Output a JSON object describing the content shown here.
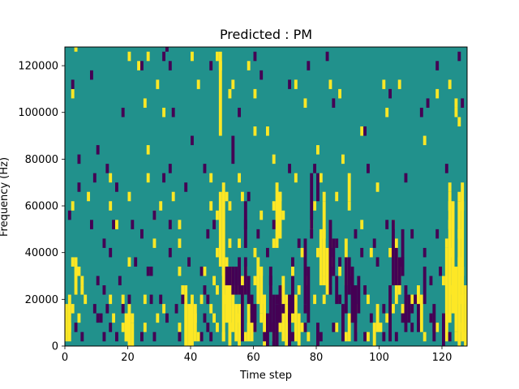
{
  "chart_data": {
    "type": "heatmap",
    "title": "Predicted : PM",
    "xlabel": "Time step",
    "ylabel": "Frequency (Hz)",
    "xlim": [
      0,
      128
    ],
    "ylim": [
      0,
      128000
    ],
    "xticks": [
      0,
      20,
      40,
      60,
      80,
      100,
      120
    ],
    "xtick_labels": [
      "0",
      "20",
      "40",
      "60",
      "80",
      "100",
      "120"
    ],
    "yticks": [
      0,
      20000,
      40000,
      60000,
      80000,
      100000,
      120000
    ],
    "ytick_labels": [
      "0",
      "20000",
      "40000",
      "60000",
      "80000",
      "100000",
      "120000"
    ],
    "grid": false,
    "legend": "none",
    "colors": {
      "background_value": "#21918c",
      "low_value": "#440154",
      "high_value": "#fde725"
    },
    "cell_size": {
      "time_steps": 1,
      "frequency_hz": 4000
    },
    "high_cells": [
      [
        3,
        126000
      ],
      [
        20,
        122000
      ],
      [
        26,
        122000
      ],
      [
        40,
        122000
      ],
      [
        48,
        122000
      ],
      [
        49,
        118000
      ],
      [
        23,
        118000
      ],
      [
        58,
        118000
      ],
      [
        29,
        110000
      ],
      [
        42,
        110000
      ],
      [
        53,
        110000
      ],
      [
        73,
        110000
      ],
      [
        84,
        110000
      ],
      [
        101,
        110000
      ],
      [
        106,
        110000
      ],
      [
        122,
        110000
      ],
      [
        2,
        106000
      ],
      [
        25,
        102000
      ],
      [
        52,
        106000
      ],
      [
        60,
        106000
      ],
      [
        76,
        102000
      ],
      [
        87,
        106000
      ],
      [
        118,
        106000
      ],
      [
        124,
        102000
      ],
      [
        31,
        98000
      ],
      [
        102,
        98000
      ],
      [
        124,
        98000
      ],
      [
        60,
        90000
      ],
      [
        64,
        90000
      ],
      [
        94,
        90000
      ],
      [
        114,
        86000
      ],
      [
        125,
        94000
      ],
      [
        80,
        82000
      ],
      [
        26,
        82000
      ],
      [
        66,
        78000
      ],
      [
        88,
        78000
      ],
      [
        14,
        70000
      ],
      [
        26,
        70000
      ],
      [
        46,
        70000
      ],
      [
        55,
        70000
      ],
      [
        73,
        70000
      ],
      [
        81,
        70000
      ],
      [
        99,
        66000
      ],
      [
        122,
        66000
      ],
      [
        7,
        62000
      ],
      [
        20,
        62000
      ],
      [
        34,
        62000
      ],
      [
        51,
        62000
      ],
      [
        56,
        62000
      ],
      [
        68,
        62000
      ],
      [
        82,
        62000
      ],
      [
        86,
        62000
      ],
      [
        125,
        62000
      ],
      [
        2,
        58000
      ],
      [
        14,
        58000
      ],
      [
        30,
        58000
      ],
      [
        46,
        58000
      ],
      [
        52,
        58000
      ],
      [
        66,
        58000
      ],
      [
        79,
        58000
      ],
      [
        90,
        58000
      ],
      [
        122,
        58000
      ],
      [
        126,
        58000
      ],
      [
        16,
        50000
      ],
      [
        28,
        54000
      ],
      [
        36,
        50000
      ],
      [
        48,
        54000
      ],
      [
        62,
        54000
      ],
      [
        69,
        54000
      ],
      [
        78,
        50000
      ],
      [
        82,
        46000
      ],
      [
        84,
        42000
      ],
      [
        94,
        50000
      ],
      [
        104,
        50000
      ],
      [
        122,
        50000
      ],
      [
        125,
        46000
      ],
      [
        28,
        42000
      ],
      [
        36,
        42000
      ],
      [
        48,
        38000
      ],
      [
        52,
        42000
      ],
      [
        55,
        42000
      ],
      [
        60,
        38000
      ],
      [
        66,
        42000
      ],
      [
        75,
        38000
      ],
      [
        80,
        38000
      ],
      [
        84,
        34000
      ],
      [
        97,
        38000
      ],
      [
        103,
        38000
      ],
      [
        121,
        42000
      ],
      [
        123,
        38000
      ],
      [
        125,
        34000
      ],
      [
        2,
        34000
      ],
      [
        4,
        30000
      ],
      [
        20,
        34000
      ],
      [
        36,
        30000
      ],
      [
        44,
        30000
      ],
      [
        50,
        30000
      ],
      [
        57,
        30000
      ],
      [
        62,
        30000
      ],
      [
        72,
        30000
      ],
      [
        76,
        26000
      ],
      [
        82,
        26000
      ],
      [
        87,
        30000
      ],
      [
        106,
        30000
      ],
      [
        120,
        26000
      ],
      [
        126,
        30000
      ],
      [
        5,
        26000
      ],
      [
        5,
        22000
      ],
      [
        6,
        18000
      ],
      [
        14,
        18000
      ],
      [
        18,
        18000
      ],
      [
        25,
        18000
      ],
      [
        31,
        14000
      ],
      [
        37,
        22000
      ],
      [
        43,
        18000
      ],
      [
        47,
        26000
      ],
      [
        48,
        22000
      ],
      [
        51,
        18000
      ],
      [
        55,
        22000
      ],
      [
        60,
        26000
      ],
      [
        63,
        18000
      ],
      [
        68,
        22000
      ],
      [
        70,
        18000
      ],
      [
        74,
        22000
      ],
      [
        79,
        18000
      ],
      [
        82,
        18000
      ],
      [
        92,
        14000
      ],
      [
        96,
        18000
      ],
      [
        104,
        14000
      ],
      [
        110,
        18000
      ],
      [
        123,
        22000
      ],
      [
        126,
        18000
      ],
      [
        2,
        14000
      ],
      [
        4,
        10000
      ],
      [
        1,
        6000
      ],
      [
        15,
        10000
      ],
      [
        18,
        6000
      ],
      [
        21,
        10000
      ],
      [
        25,
        6000
      ],
      [
        29,
        10000
      ],
      [
        36,
        6000
      ],
      [
        41,
        10000
      ],
      [
        46,
        14000
      ],
      [
        47,
        10000
      ],
      [
        48,
        6000
      ],
      [
        50,
        2000
      ],
      [
        52,
        6000
      ],
      [
        55,
        10000
      ],
      [
        57,
        2000
      ],
      [
        60,
        6000
      ],
      [
        62,
        10000
      ],
      [
        66,
        2000
      ],
      [
        68,
        6000
      ],
      [
        72,
        10000
      ],
      [
        75,
        6000
      ],
      [
        77,
        2000
      ],
      [
        86,
        6000
      ],
      [
        89,
        2000
      ],
      [
        92,
        6000
      ],
      [
        96,
        2000
      ],
      [
        100,
        6000
      ],
      [
        102,
        10000
      ],
      [
        114,
        2000
      ],
      [
        118,
        6000
      ],
      [
        121,
        10000
      ],
      [
        124,
        2000
      ],
      [
        126,
        6000
      ],
      [
        127,
        2000
      ],
      [
        19,
        2000
      ],
      [
        42,
        2000
      ],
      [
        58,
        6000
      ],
      [
        107,
        14000
      ]
    ],
    "high_runs": [
      [
        49,
        90000,
        122000
      ],
      [
        49,
        34000,
        62000
      ],
      [
        50,
        2000,
        66000
      ],
      [
        51,
        10000,
        34000
      ],
      [
        52,
        0,
        30000
      ],
      [
        53,
        6000,
        22000
      ],
      [
        54,
        2000,
        14000
      ],
      [
        55,
        0,
        14000
      ],
      [
        56,
        6000,
        26000
      ],
      [
        61,
        18000,
        34000
      ],
      [
        62,
        14000,
        30000
      ],
      [
        38,
        0,
        22000
      ],
      [
        39,
        0,
        14000
      ],
      [
        40,
        0,
        18000
      ],
      [
        41,
        2000,
        14000
      ],
      [
        58,
        2000,
        14000
      ],
      [
        59,
        2000,
        10000
      ],
      [
        19,
        2000,
        10000
      ],
      [
        20,
        0,
        14000
      ],
      [
        21,
        0,
        6000
      ],
      [
        0,
        2000,
        14000
      ],
      [
        1,
        2000,
        18000
      ],
      [
        3,
        22000,
        34000
      ],
      [
        63,
        0,
        18000
      ],
      [
        69,
        2000,
        26000
      ],
      [
        70,
        0,
        14000
      ],
      [
        73,
        2000,
        18000
      ],
      [
        74,
        0,
        10000
      ],
      [
        81,
        26000,
        46000
      ],
      [
        82,
        30000,
        58000
      ],
      [
        83,
        22000,
        38000
      ],
      [
        89,
        26000,
        42000
      ],
      [
        90,
        2000,
        10000
      ],
      [
        98,
        0,
        6000
      ],
      [
        99,
        6000,
        14000
      ],
      [
        105,
        18000,
        42000
      ],
      [
        106,
        22000,
        34000
      ],
      [
        113,
        6000,
        18000
      ],
      [
        121,
        2000,
        38000
      ],
      [
        122,
        10000,
        62000
      ],
      [
        123,
        14000,
        58000
      ],
      [
        124,
        6000,
        30000
      ],
      [
        125,
        0,
        58000
      ],
      [
        126,
        2000,
        66000
      ],
      [
        127,
        0,
        22000
      ],
      [
        67,
        42000,
        66000
      ],
      [
        68,
        46000,
        62000
      ],
      [
        90,
        62000,
        70000
      ],
      [
        125,
        18000,
        30000
      ],
      [
        112,
        10000,
        22000
      ]
    ],
    "low_cells": [
      [
        4,
        78000
      ],
      [
        10,
        82000
      ],
      [
        13,
        74000
      ],
      [
        32,
        126000
      ],
      [
        31,
        122000
      ],
      [
        33,
        118000
      ],
      [
        46,
        118000
      ],
      [
        60,
        122000
      ],
      [
        77,
        118000
      ],
      [
        83,
        122000
      ],
      [
        103,
        106000
      ],
      [
        115,
        102000
      ],
      [
        118,
        118000
      ],
      [
        125,
        122000
      ],
      [
        8,
        114000
      ],
      [
        24,
        118000
      ],
      [
        34,
        98000
      ],
      [
        40,
        86000
      ],
      [
        55,
        98000
      ],
      [
        62,
        114000
      ],
      [
        71,
        110000
      ],
      [
        85,
        102000
      ],
      [
        95,
        90000
      ],
      [
        113,
        98000
      ],
      [
        126,
        102000
      ],
      [
        2,
        110000
      ],
      [
        18,
        98000
      ],
      [
        31,
        70000
      ],
      [
        38,
        66000
      ],
      [
        9,
        70000
      ],
      [
        4,
        66000
      ],
      [
        16,
        66000
      ],
      [
        33,
        74000
      ],
      [
        44,
        74000
      ],
      [
        58,
        62000
      ],
      [
        71,
        74000
      ],
      [
        79,
        74000
      ],
      [
        96,
        74000
      ],
      [
        108,
        70000
      ],
      [
        121,
        74000
      ],
      [
        1,
        54000
      ],
      [
        8,
        50000
      ],
      [
        15,
        50000
      ],
      [
        21,
        50000
      ],
      [
        24,
        46000
      ],
      [
        28,
        54000
      ],
      [
        33,
        50000
      ],
      [
        45,
        46000
      ],
      [
        47,
        50000
      ],
      [
        57,
        50000
      ],
      [
        61,
        46000
      ],
      [
        66,
        50000
      ],
      [
        74,
        42000
      ],
      [
        78,
        46000
      ],
      [
        86,
        42000
      ],
      [
        92,
        46000
      ],
      [
        98,
        42000
      ],
      [
        102,
        50000
      ],
      [
        110,
        46000
      ],
      [
        118,
        46000
      ],
      [
        12,
        42000
      ],
      [
        14,
        38000
      ],
      [
        22,
        34000
      ],
      [
        27,
        30000
      ],
      [
        33,
        38000
      ],
      [
        39,
        34000
      ],
      [
        43,
        30000
      ],
      [
        57,
        34000
      ],
      [
        64,
        38000
      ],
      [
        72,
        34000
      ],
      [
        87,
        34000
      ],
      [
        94,
        38000
      ],
      [
        99,
        34000
      ],
      [
        107,
        34000
      ],
      [
        114,
        38000
      ],
      [
        119,
        30000
      ],
      [
        10,
        26000
      ],
      [
        12,
        22000
      ],
      [
        17,
        26000
      ],
      [
        26,
        30000
      ],
      [
        30,
        18000
      ],
      [
        35,
        14000
      ],
      [
        44,
        22000
      ],
      [
        45,
        18000
      ],
      [
        65,
        26000
      ],
      [
        67,
        18000
      ],
      [
        76,
        14000
      ],
      [
        84,
        22000
      ],
      [
        87,
        18000
      ],
      [
        91,
        26000
      ],
      [
        95,
        22000
      ],
      [
        101,
        14000
      ],
      [
        108,
        22000
      ],
      [
        111,
        18000
      ],
      [
        116,
        26000
      ],
      [
        10,
        10000
      ],
      [
        11,
        10000
      ],
      [
        12,
        2000
      ],
      [
        14,
        6000
      ],
      [
        16,
        2000
      ],
      [
        24,
        2000
      ],
      [
        28,
        2000
      ],
      [
        32,
        10000
      ],
      [
        36,
        2000
      ],
      [
        43,
        2000
      ],
      [
        45,
        6000
      ],
      [
        63,
        2000
      ],
      [
        66,
        6000
      ],
      [
        72,
        2000
      ],
      [
        76,
        6000
      ],
      [
        81,
        2000
      ],
      [
        85,
        6000
      ],
      [
        95,
        2000
      ],
      [
        97,
        10000
      ],
      [
        101,
        2000
      ],
      [
        110,
        6000
      ],
      [
        117,
        6000
      ],
      [
        122,
        2000
      ],
      [
        44,
        10000
      ],
      [
        5,
        2000
      ],
      [
        3,
        6000
      ],
      [
        13,
        14000
      ],
      [
        18,
        14000
      ],
      [
        20,
        18000
      ],
      [
        27,
        18000
      ],
      [
        37,
        18000
      ],
      [
        69,
        14000
      ],
      [
        71,
        10000
      ],
      [
        46,
        2000
      ],
      [
        105,
        2000
      ],
      [
        107,
        10000
      ],
      [
        110,
        14000
      ],
      [
        116,
        10000
      ],
      [
        9,
        14000
      ]
    ],
    "low_runs": [
      [
        51,
        26000,
        30000
      ],
      [
        52,
        26000,
        30000
      ],
      [
        53,
        22000,
        30000
      ],
      [
        54,
        22000,
        30000
      ],
      [
        55,
        22000,
        34000
      ],
      [
        56,
        2000,
        22000
      ],
      [
        57,
        22000,
        30000
      ],
      [
        58,
        18000,
        26000
      ],
      [
        59,
        10000,
        18000
      ],
      [
        60,
        6000,
        14000
      ],
      [
        64,
        0,
        10000
      ],
      [
        65,
        6000,
        30000
      ],
      [
        66,
        0,
        18000
      ],
      [
        67,
        0,
        14000
      ],
      [
        68,
        10000,
        22000
      ],
      [
        71,
        0,
        18000
      ],
      [
        72,
        14000,
        26000
      ],
      [
        76,
        18000,
        42000
      ],
      [
        77,
        10000,
        30000
      ],
      [
        80,
        0,
        6000
      ],
      [
        84,
        26000,
        50000
      ],
      [
        85,
        30000,
        42000
      ],
      [
        86,
        18000,
        26000
      ],
      [
        88,
        2000,
        14000
      ],
      [
        89,
        14000,
        34000
      ],
      [
        90,
        22000,
        34000
      ],
      [
        91,
        10000,
        30000
      ],
      [
        92,
        2000,
        22000
      ],
      [
        93,
        14000,
        26000
      ],
      [
        103,
        2000,
        22000
      ],
      [
        104,
        26000,
        50000
      ],
      [
        105,
        26000,
        38000
      ],
      [
        106,
        26000,
        34000
      ],
      [
        107,
        30000,
        46000
      ],
      [
        108,
        6000,
        18000
      ],
      [
        109,
        10000,
        18000
      ],
      [
        112,
        6000,
        14000
      ],
      [
        114,
        18000,
        30000
      ],
      [
        117,
        2000,
        14000
      ],
      [
        120,
        0,
        10000
      ],
      [
        53,
        78000,
        86000
      ],
      [
        57,
        42000,
        58000
      ],
      [
        78,
        50000,
        70000
      ],
      [
        80,
        62000,
        70000
      ]
    ]
  }
}
